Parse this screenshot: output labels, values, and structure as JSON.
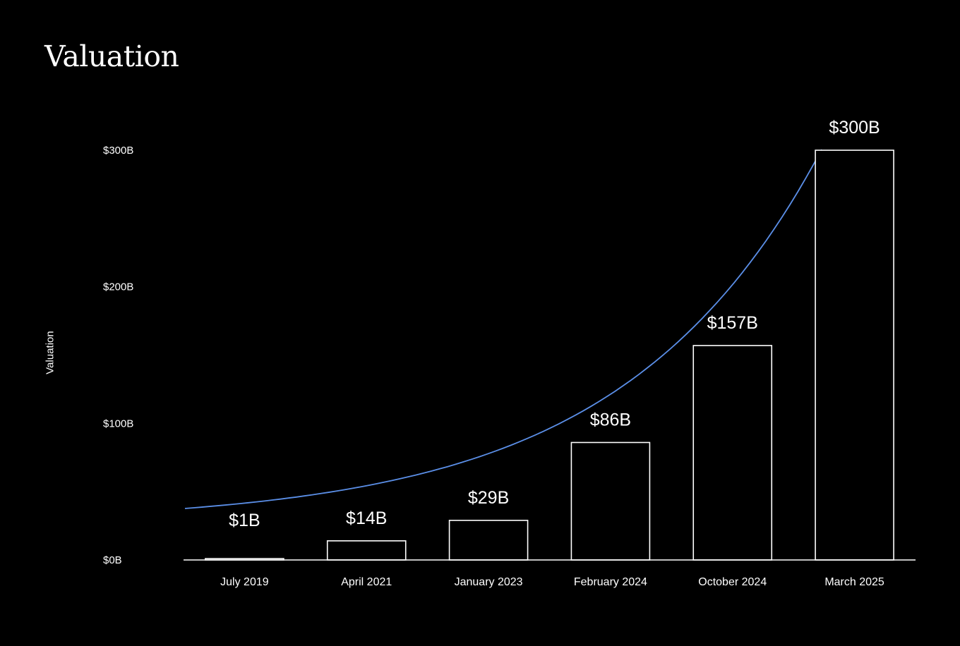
{
  "chart_data": {
    "type": "bar",
    "title": "Valuation",
    "xlabel": "",
    "ylabel": "Valuation",
    "categories": [
      "July 2019",
      "April 2021",
      "January 2023",
      "February 2024",
      "October 2024",
      "March 2025"
    ],
    "values": [
      1,
      14,
      29,
      86,
      157,
      300
    ],
    "data_labels": [
      "$1B",
      "$14B",
      "$29B",
      "$86B",
      "$157B",
      "$300B"
    ],
    "ylim": [
      0,
      300
    ],
    "yticks": [
      0,
      100,
      200,
      300
    ],
    "ytick_labels": [
      "$0B",
      "$100B",
      "$200B",
      "$300B"
    ],
    "grid": false,
    "legend": "none",
    "trend_line": {
      "type": "exponential",
      "color": "#5b8fe8"
    },
    "colors": {
      "background": "#000000",
      "bar_stroke": "#ffffff",
      "bar_fill": "#000000",
      "text": "#ffffff",
      "trend": "#5b8fe8"
    }
  }
}
